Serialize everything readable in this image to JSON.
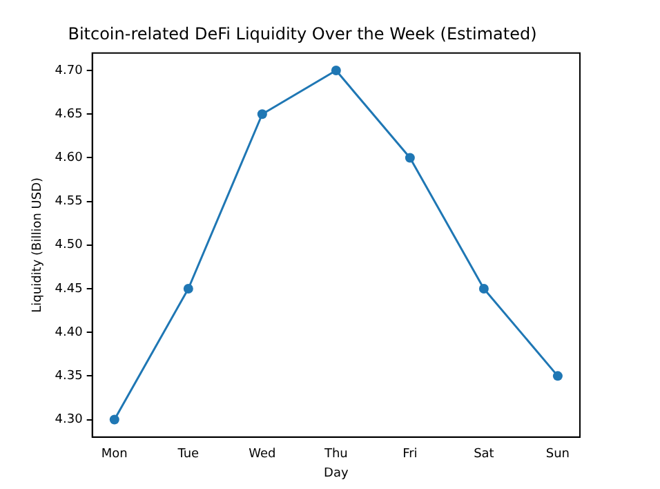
{
  "chart_data": {
    "type": "line",
    "title": "Bitcoin-related DeFi Liquidity Over the Week (Estimated)",
    "xlabel": "Day",
    "ylabel": "Liquidity (Billion USD)",
    "categories": [
      "Mon",
      "Tue",
      "Wed",
      "Thu",
      "Fri",
      "Sat",
      "Sun"
    ],
    "series": [
      {
        "color": "#1f77b4",
        "values": [
          4.3,
          4.45,
          4.65,
          4.7,
          4.6,
          4.45,
          4.35
        ]
      }
    ],
    "ylim": [
      4.28,
      4.72
    ],
    "yticks": [
      {
        "value": 4.3,
        "label": "4.30"
      },
      4.35,
      {
        "value": 4.4,
        "label": "4.40"
      },
      4.45,
      {
        "value": 4.5,
        "label": "4.50"
      },
      4.55,
      {
        "value": 4.6,
        "label": "4.60"
      },
      4.65,
      {
        "value": 4.7,
        "label": "4.70"
      }
    ],
    "marker": "circle",
    "grid": false,
    "legend": false
  }
}
